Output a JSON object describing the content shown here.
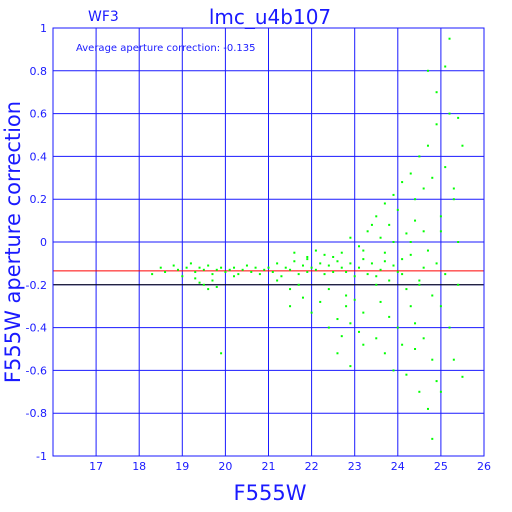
{
  "chart_data": {
    "type": "scatter",
    "title": "lmc_u4b107",
    "chip_label": "WF3",
    "xlabel": "F555W",
    "ylabel": "F555W aperture correction",
    "annotation": "Average aperture correction: -0.135",
    "xlim": [
      16,
      26
    ],
    "ylim": [
      -1,
      1
    ],
    "x_ticks": [
      17,
      18,
      19,
      20,
      21,
      22,
      23,
      24,
      25,
      26
    ],
    "y_ticks": [
      -1,
      -0.8,
      -0.6,
      -0.4,
      -0.2,
      0,
      0.2,
      0.4,
      0.6,
      0.8,
      1
    ],
    "grid": true,
    "reference_lines": [
      {
        "y": -0.135,
        "color": "#ff0000"
      },
      {
        "y": -0.2,
        "color": "#000000"
      }
    ],
    "point_color": "#00ff00",
    "grid_color": "#1a1aff",
    "points": [
      [
        18.3,
        -0.15
      ],
      [
        18.5,
        -0.12
      ],
      [
        18.6,
        -0.14
      ],
      [
        18.8,
        -0.11
      ],
      [
        18.9,
        -0.13
      ],
      [
        19.0,
        -0.16
      ],
      [
        19.1,
        -0.12
      ],
      [
        19.2,
        -0.1
      ],
      [
        19.3,
        -0.14
      ],
      [
        19.4,
        -0.12
      ],
      [
        19.5,
        -0.13
      ],
      [
        19.6,
        -0.11
      ],
      [
        19.7,
        -0.15
      ],
      [
        19.8,
        -0.13
      ],
      [
        19.9,
        -0.12
      ],
      [
        20.0,
        -0.14
      ],
      [
        20.1,
        -0.13
      ],
      [
        20.2,
        -0.12
      ],
      [
        20.3,
        -0.15
      ],
      [
        19.4,
        -0.19
      ],
      [
        19.6,
        -0.22
      ],
      [
        19.5,
        -0.2
      ],
      [
        19.8,
        -0.21
      ],
      [
        20.4,
        -0.13
      ],
      [
        20.5,
        -0.11
      ],
      [
        20.6,
        -0.14
      ],
      [
        20.7,
        -0.12
      ],
      [
        20.8,
        -0.15
      ],
      [
        20.9,
        -0.13
      ],
      [
        21.0,
        -0.12
      ],
      [
        19.9,
        -0.52
      ],
      [
        19.7,
        -0.18
      ],
      [
        20.2,
        -0.16
      ],
      [
        19.3,
        -0.17
      ],
      [
        21.1,
        -0.14
      ],
      [
        21.2,
        -0.1
      ],
      [
        21.3,
        -0.16
      ],
      [
        21.4,
        -0.12
      ],
      [
        21.5,
        -0.13
      ],
      [
        21.6,
        -0.09
      ],
      [
        21.7,
        -0.15
      ],
      [
        21.8,
        -0.11
      ],
      [
        21.9,
        -0.14
      ],
      [
        22.0,
        -0.12
      ],
      [
        21.2,
        -0.18
      ],
      [
        21.5,
        -0.22
      ],
      [
        21.7,
        -0.2
      ],
      [
        21.9,
        -0.08
      ],
      [
        22.1,
        -0.13
      ],
      [
        22.2,
        -0.1
      ],
      [
        22.3,
        -0.15
      ],
      [
        22.4,
        -0.11
      ],
      [
        22.5,
        -0.14
      ],
      [
        22.6,
        -0.09
      ],
      [
        21.5,
        -0.3
      ],
      [
        21.8,
        -0.26
      ],
      [
        22.0,
        -0.33
      ],
      [
        22.2,
        -0.28
      ],
      [
        22.4,
        -0.22
      ],
      [
        22.6,
        -0.36
      ],
      [
        22.8,
        -0.25
      ],
      [
        21.6,
        -0.05
      ],
      [
        21.9,
        -0.07
      ],
      [
        22.1,
        -0.04
      ],
      [
        22.3,
        -0.06
      ],
      [
        22.5,
        -0.07
      ],
      [
        22.7,
        -0.05
      ],
      [
        22.7,
        -0.12
      ],
      [
        22.8,
        -0.14
      ],
      [
        22.9,
        -0.1
      ],
      [
        23.0,
        -0.16
      ],
      [
        23.1,
        -0.12
      ],
      [
        23.2,
        -0.08
      ],
      [
        23.3,
        -0.15
      ],
      [
        22.4,
        -0.4
      ],
      [
        22.7,
        -0.44
      ],
      [
        22.9,
        -0.38
      ],
      [
        23.1,
        -0.42
      ],
      [
        22.6,
        -0.52
      ],
      [
        22.9,
        -0.58
      ],
      [
        23.2,
        -0.48
      ],
      [
        22.8,
        -0.3
      ],
      [
        23.0,
        -0.27
      ],
      [
        23.2,
        -0.33
      ],
      [
        22.9,
        0.02
      ],
      [
        23.1,
        -0.02
      ],
      [
        23.3,
        0.05
      ],
      [
        23.2,
        -0.04
      ],
      [
        23.4,
        0.08
      ],
      [
        23.5,
        0.12
      ],
      [
        23.4,
        -0.1
      ],
      [
        23.5,
        -0.16
      ],
      [
        23.6,
        -0.13
      ],
      [
        23.7,
        -0.09
      ],
      [
        23.8,
        -0.18
      ],
      [
        23.9,
        -0.11
      ],
      [
        24.0,
        -0.14
      ],
      [
        23.6,
        -0.28
      ],
      [
        23.8,
        -0.35
      ],
      [
        24.0,
        -0.4
      ],
      [
        23.5,
        -0.45
      ],
      [
        23.7,
        -0.52
      ],
      [
        23.9,
        -0.6
      ],
      [
        24.1,
        -0.48
      ],
      [
        23.6,
        0.02
      ],
      [
        23.8,
        0.08
      ],
      [
        24.0,
        0.15
      ],
      [
        23.7,
        0.18
      ],
      [
        23.9,
        0.22
      ],
      [
        24.1,
        0.28
      ],
      [
        24.2,
        0.04
      ],
      [
        24.3,
        -0.06
      ],
      [
        24.4,
        0.1
      ],
      [
        24.2,
        -0.22
      ],
      [
        24.3,
        -0.3
      ],
      [
        24.4,
        -0.38
      ],
      [
        24.5,
        -0.18
      ],
      [
        24.6,
        -0.12
      ],
      [
        24.1,
        -0.08
      ],
      [
        24.4,
        -0.5
      ],
      [
        24.2,
        -0.62
      ],
      [
        24.5,
        -0.7
      ],
      [
        24.3,
        0.32
      ],
      [
        24.5,
        0.4
      ],
      [
        24.4,
        0.2
      ],
      [
        24.6,
        0.25
      ],
      [
        24.7,
        0.45
      ],
      [
        24.8,
        0.3
      ],
      [
        24.6,
        0.05
      ],
      [
        24.7,
        -0.04
      ],
      [
        24.8,
        -0.25
      ],
      [
        24.9,
        -0.1
      ],
      [
        24.6,
        -0.45
      ],
      [
        24.8,
        -0.55
      ],
      [
        24.7,
        -0.78
      ],
      [
        24.9,
        -0.65
      ],
      [
        24.9,
        0.55
      ],
      [
        25.0,
        0.12
      ],
      [
        25.0,
        -0.3
      ],
      [
        25.1,
        0.35
      ],
      [
        25.1,
        -0.15
      ],
      [
        25.2,
        0.6
      ],
      [
        25.2,
        -0.4
      ],
      [
        25.3,
        0.2
      ],
      [
        24.7,
        0.8
      ],
      [
        25.2,
        0.95
      ],
      [
        25.1,
        0.82
      ],
      [
        24.9,
        0.7
      ],
      [
        25.3,
        -0.55
      ],
      [
        25.4,
        0.0
      ],
      [
        25.4,
        -0.2
      ],
      [
        25.5,
        0.45
      ],
      [
        25.5,
        -0.63
      ],
      [
        25.3,
        0.25
      ],
      [
        25.4,
        0.58
      ],
      [
        25.0,
        -0.7
      ],
      [
        24.8,
        -0.92
      ],
      [
        25.0,
        0.05
      ],
      [
        24.5,
        -0.2
      ],
      [
        24.3,
        0.0
      ],
      [
        24.1,
        -0.15
      ],
      [
        23.9,
        0.0
      ],
      [
        23.7,
        -0.05
      ],
      [
        23.5,
        -0.2
      ]
    ]
  }
}
